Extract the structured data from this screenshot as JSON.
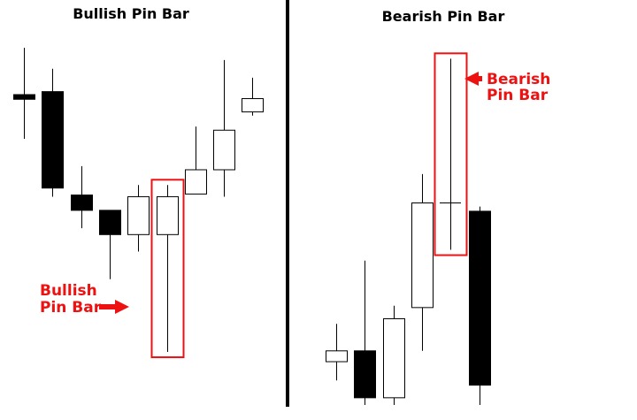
{
  "chart_data": [
    {
      "type": "candlestick",
      "title": "Bullish Pin Bar",
      "annotation": {
        "lines": [
          "Bullish",
          "Pin Bar"
        ],
        "target": 5,
        "direction": "right"
      },
      "highlight_index": 5,
      "ylim": [
        0,
        100
      ],
      "candles": [
        {
          "open": 85.9,
          "close": 84.5,
          "high": 100.0,
          "low": 72.6,
          "color": "bearish"
        },
        {
          "open": 86.8,
          "close": 57.8,
          "high": 93.7,
          "low": 55.2,
          "color": "bearish"
        },
        {
          "open": 55.7,
          "close": 51.1,
          "high": 64.4,
          "low": 45.7,
          "color": "bearish"
        },
        {
          "open": 51.1,
          "close": 43.8,
          "high": 51.1,
          "low": 30.4,
          "color": "bearish"
        },
        {
          "open": 43.8,
          "close": 55.2,
          "high": 58.7,
          "low": 38.7,
          "color": "bullish"
        },
        {
          "open": 43.8,
          "close": 55.2,
          "high": 58.7,
          "low": 8.5,
          "color": "bullish"
        },
        {
          "open": 56.0,
          "close": 63.3,
          "high": 76.3,
          "low": 56.0,
          "color": "bullish"
        },
        {
          "open": 63.3,
          "close": 75.2,
          "high": 96.3,
          "low": 55.2,
          "color": "bullish"
        },
        {
          "open": 80.7,
          "close": 84.7,
          "high": 91.0,
          "low": 79.6,
          "color": "bullish"
        }
      ]
    },
    {
      "type": "candlestick",
      "title": "Bearish Pin Bar",
      "annotation": {
        "lines": [
          "Bearish",
          "Pin Bar"
        ],
        "target": 4,
        "direction": "left"
      },
      "highlight_index": 4,
      "ylim": [
        0,
        100
      ],
      "candles": [
        {
          "open": 12.0,
          "close": 15.0,
          "high": 22.5,
          "low": 6.8,
          "color": "bullish"
        },
        {
          "open": 15.0,
          "close": 2.0,
          "high": 40.0,
          "low": 0.0,
          "color": "bearish"
        },
        {
          "open": 2.0,
          "close": 23.9,
          "high": 27.5,
          "low": 0.0,
          "color": "bullish"
        },
        {
          "open": 27.0,
          "close": 56.0,
          "high": 64.0,
          "low": 15.0,
          "color": "bullish"
        },
        {
          "open": 56.0,
          "close": 56.0,
          "high": 96.0,
          "low": 43.0,
          "color": "doji"
        },
        {
          "open": 53.7,
          "close": 5.5,
          "high": 55.0,
          "low": 0.0,
          "color": "bearish"
        }
      ]
    }
  ]
}
